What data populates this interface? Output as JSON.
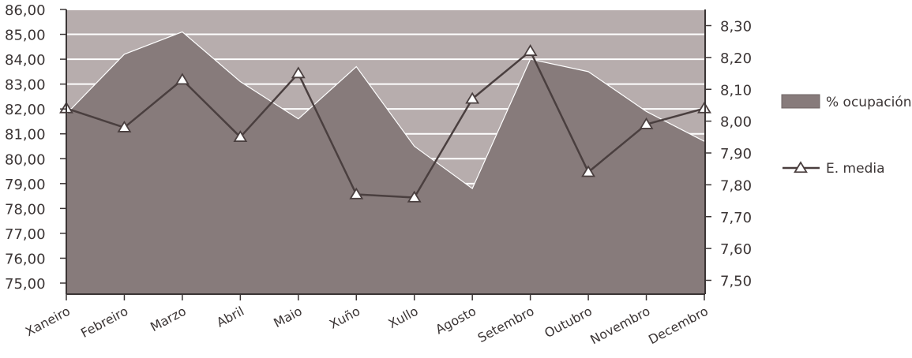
{
  "chart_data": {
    "type": "line",
    "categories": [
      "Xaneiro",
      "Febreiro",
      "Marzo",
      "Abril",
      "Maio",
      "Xuño",
      "Xullo",
      "Agosto",
      "Setembro",
      "Outubro",
      "Novembro",
      "Decembro"
    ],
    "series": [
      {
        "name": "% ocupación",
        "kind": "area",
        "axis": "left",
        "values": [
          81.8,
          84.2,
          85.1,
          83.1,
          81.6,
          83.7,
          80.5,
          78.8,
          84.0,
          83.5,
          81.9,
          80.7
        ]
      },
      {
        "name": "E. media",
        "kind": "line",
        "marker": "triangle",
        "axis": "right",
        "values": [
          8.04,
          7.98,
          8.13,
          7.95,
          8.15,
          7.77,
          7.76,
          8.07,
          8.22,
          7.84,
          7.99,
          8.04
        ]
      }
    ],
    "y_left": {
      "ylim": [
        75,
        86
      ],
      "ticks": [
        "75,00",
        "76,00",
        "77,00",
        "78,00",
        "79,00",
        "80,00",
        "81,00",
        "82,00",
        "83,00",
        "84,00",
        "85,00",
        "86,00"
      ]
    },
    "y_right": {
      "ylim": [
        7.45,
        8.35
      ],
      "ticks": [
        "7,50",
        "7,60",
        "7,70",
        "7,80",
        "7,90",
        "8,00",
        "8,10",
        "8,20",
        "8,30"
      ]
    },
    "grid": true,
    "legend_position": "right",
    "colors": {
      "area": "#877b7b",
      "plot_background": "#b7adad",
      "gridline": "#ffffff",
      "line": "#4a3f3f",
      "marker_fill": "#ffffff",
      "axis": "#3b3535"
    }
  }
}
